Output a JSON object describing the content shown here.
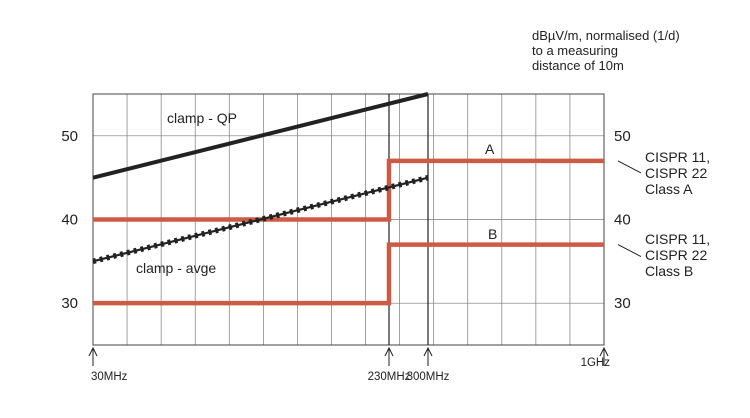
{
  "chart_data": {
    "type": "line",
    "units_note": [
      "dBµV/m, normalised (1/d)",
      "to a measuring",
      "distance of 10m"
    ],
    "y_ticks": [
      30,
      40,
      50
    ],
    "ylim": [
      25,
      55
    ],
    "x_ticks": [
      "30MHz",
      "230MHz",
      "300MHz",
      "1GHz"
    ],
    "xlim_mhz": [
      30,
      1000
    ],
    "grid": true,
    "series": [
      {
        "name": "A",
        "color": "#cd5a45",
        "style": "solid",
        "x": [
          30,
          230,
          230,
          1000
        ],
        "y": [
          40,
          40,
          47,
          47
        ]
      },
      {
        "name": "B",
        "color": "#cd5a45",
        "style": "solid",
        "x": [
          30,
          230,
          230,
          1000
        ],
        "y": [
          30,
          30,
          37,
          37
        ]
      },
      {
        "name": "clamp - QP",
        "color": "#222222",
        "style": "solid",
        "x": [
          30,
          300
        ],
        "y": [
          45,
          55
        ]
      },
      {
        "name": "clamp - avge",
        "color": "#222222",
        "style": "dotted",
        "x": [
          30,
          300
        ],
        "y": [
          35,
          45
        ]
      }
    ],
    "right_labels": [
      {
        "lines": [
          "CISPR 11,",
          "CISPR 22",
          "Class A"
        ],
        "at": 47
      },
      {
        "lines": [
          "CISPR 11,",
          "CISPR 22",
          "Class B"
        ],
        "at": 37
      }
    ]
  }
}
